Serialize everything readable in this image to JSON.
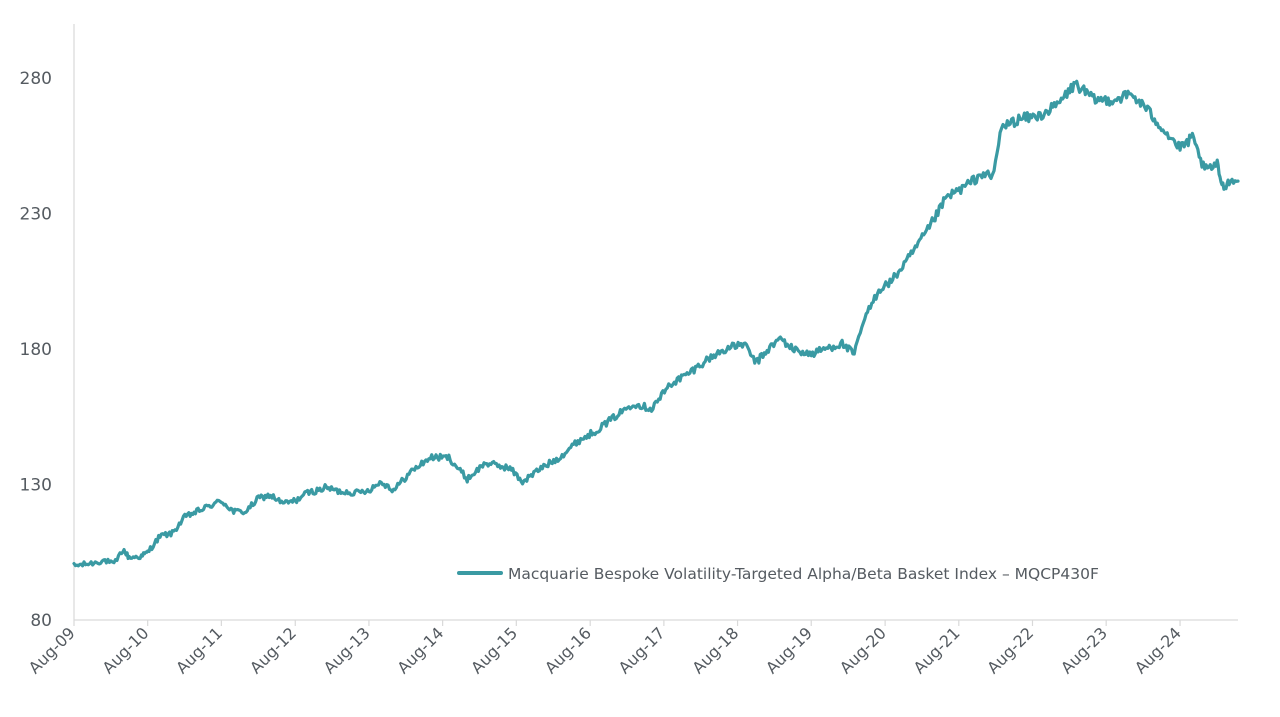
{
  "chart_data": {
    "type": "line",
    "title": "",
    "xlabel": "",
    "ylabel": "",
    "x_range": [
      "2009-08-01",
      "2025-05-15"
    ],
    "ylim": [
      80,
      300
    ],
    "y_ticks": [
      80,
      130,
      180,
      230,
      280
    ],
    "x_ticks": [
      "Aug-09",
      "Aug-10",
      "Aug-11",
      "Aug-12",
      "Aug-13",
      "Aug-14",
      "Aug-15",
      "Aug-16",
      "Aug-17",
      "Aug-18",
      "Aug-19",
      "Aug-20",
      "Aug-21",
      "Aug-22",
      "Aug-23",
      "Aug-24"
    ],
    "x_tick_dates": [
      "2009-08-01",
      "2010-08-01",
      "2011-08-01",
      "2012-08-01",
      "2013-08-01",
      "2014-08-01",
      "2015-08-01",
      "2016-08-01",
      "2017-08-01",
      "2018-08-01",
      "2019-08-01",
      "2020-08-01",
      "2021-08-01",
      "2022-08-01",
      "2023-08-01",
      "2024-08-01"
    ],
    "grid": false,
    "legend_position": "bottom-right",
    "series": [
      {
        "name": "Macquarie Bespoke Volatility-Targeted Alpha/Beta Basket Index – MQCP430F",
        "color": "#3a9aa3",
        "points": [
          [
            "2009-08-01",
            100
          ],
          [
            "2009-11-01",
            101
          ],
          [
            "2010-01-01",
            102
          ],
          [
            "2010-02-15",
            100.5
          ],
          [
            "2010-04-01",
            106
          ],
          [
            "2010-05-01",
            103
          ],
          [
            "2010-07-01",
            103.5
          ],
          [
            "2010-08-01",
            105
          ],
          [
            "2010-10-01",
            111
          ],
          [
            "2010-12-01",
            112
          ],
          [
            "2011-02-01",
            118
          ],
          [
            "2011-04-01",
            120
          ],
          [
            "2011-06-01",
            122
          ],
          [
            "2011-08-01",
            124
          ],
          [
            "2011-10-01",
            120
          ],
          [
            "2011-12-01",
            120
          ],
          [
            "2012-02-01",
            125
          ],
          [
            "2012-04-01",
            126
          ],
          [
            "2012-06-01",
            123
          ],
          [
            "2012-08-01",
            124
          ],
          [
            "2012-10-01",
            127
          ],
          [
            "2012-12-01",
            128
          ],
          [
            "2013-01-01",
            129
          ],
          [
            "2013-03-01",
            127.5
          ],
          [
            "2013-06-01",
            127
          ],
          [
            "2013-08-01",
            128
          ],
          [
            "2013-10-01",
            131
          ],
          [
            "2013-12-01",
            128
          ],
          [
            "2014-03-01",
            135
          ],
          [
            "2014-06-01",
            140
          ],
          [
            "2014-09-01",
            140
          ],
          [
            "2014-12-01",
            132
          ],
          [
            "2015-03-01",
            138
          ],
          [
            "2015-05-01",
            137
          ],
          [
            "2015-07-01",
            136
          ],
          [
            "2015-09-01",
            131
          ],
          [
            "2015-12-01",
            136
          ],
          [
            "2016-03-01",
            140
          ],
          [
            "2016-06-01",
            146
          ],
          [
            "2016-09-01",
            150
          ],
          [
            "2016-12-01",
            155
          ],
          [
            "2017-03-01",
            160
          ],
          [
            "2017-06-01",
            158
          ],
          [
            "2017-09-01",
            167
          ],
          [
            "2017-12-01",
            171
          ],
          [
            "2018-03-01",
            176
          ],
          [
            "2018-06-01",
            180
          ],
          [
            "2018-09-01",
            182
          ],
          [
            "2018-11-01",
            175
          ],
          [
            "2019-01-01",
            180
          ],
          [
            "2019-03-01",
            184
          ],
          [
            "2019-05-01",
            180
          ],
          [
            "2019-08-01",
            178
          ],
          [
            "2019-10-01",
            180
          ],
          [
            "2020-01-01",
            182
          ],
          [
            "2020-03-01",
            178
          ],
          [
            "2020-04-15",
            190
          ],
          [
            "2020-07-01",
            202
          ],
          [
            "2020-09-01",
            205
          ],
          [
            "2020-12-01",
            214
          ],
          [
            "2021-03-01",
            224
          ],
          [
            "2021-06-01",
            236
          ],
          [
            "2021-09-01",
            240
          ],
          [
            "2021-12-01",
            245
          ],
          [
            "2022-01-15",
            243
          ],
          [
            "2022-03-01",
            262
          ],
          [
            "2022-06-01",
            265
          ],
          [
            "2022-09-01",
            266
          ],
          [
            "2022-12-01",
            270
          ],
          [
            "2023-03-01",
            278
          ],
          [
            "2023-06-01",
            272
          ],
          [
            "2023-09-01",
            272
          ],
          [
            "2023-12-01",
            274
          ],
          [
            "2024-02-01",
            270
          ],
          [
            "2024-05-01",
            262
          ],
          [
            "2024-08-01",
            254
          ],
          [
            "2024-10-01",
            258
          ],
          [
            "2024-12-01",
            246
          ],
          [
            "2025-02-01",
            248
          ],
          [
            "2025-03-01",
            240
          ],
          [
            "2025-04-01",
            242
          ],
          [
            "2025-05-15",
            242
          ]
        ]
      }
    ]
  }
}
